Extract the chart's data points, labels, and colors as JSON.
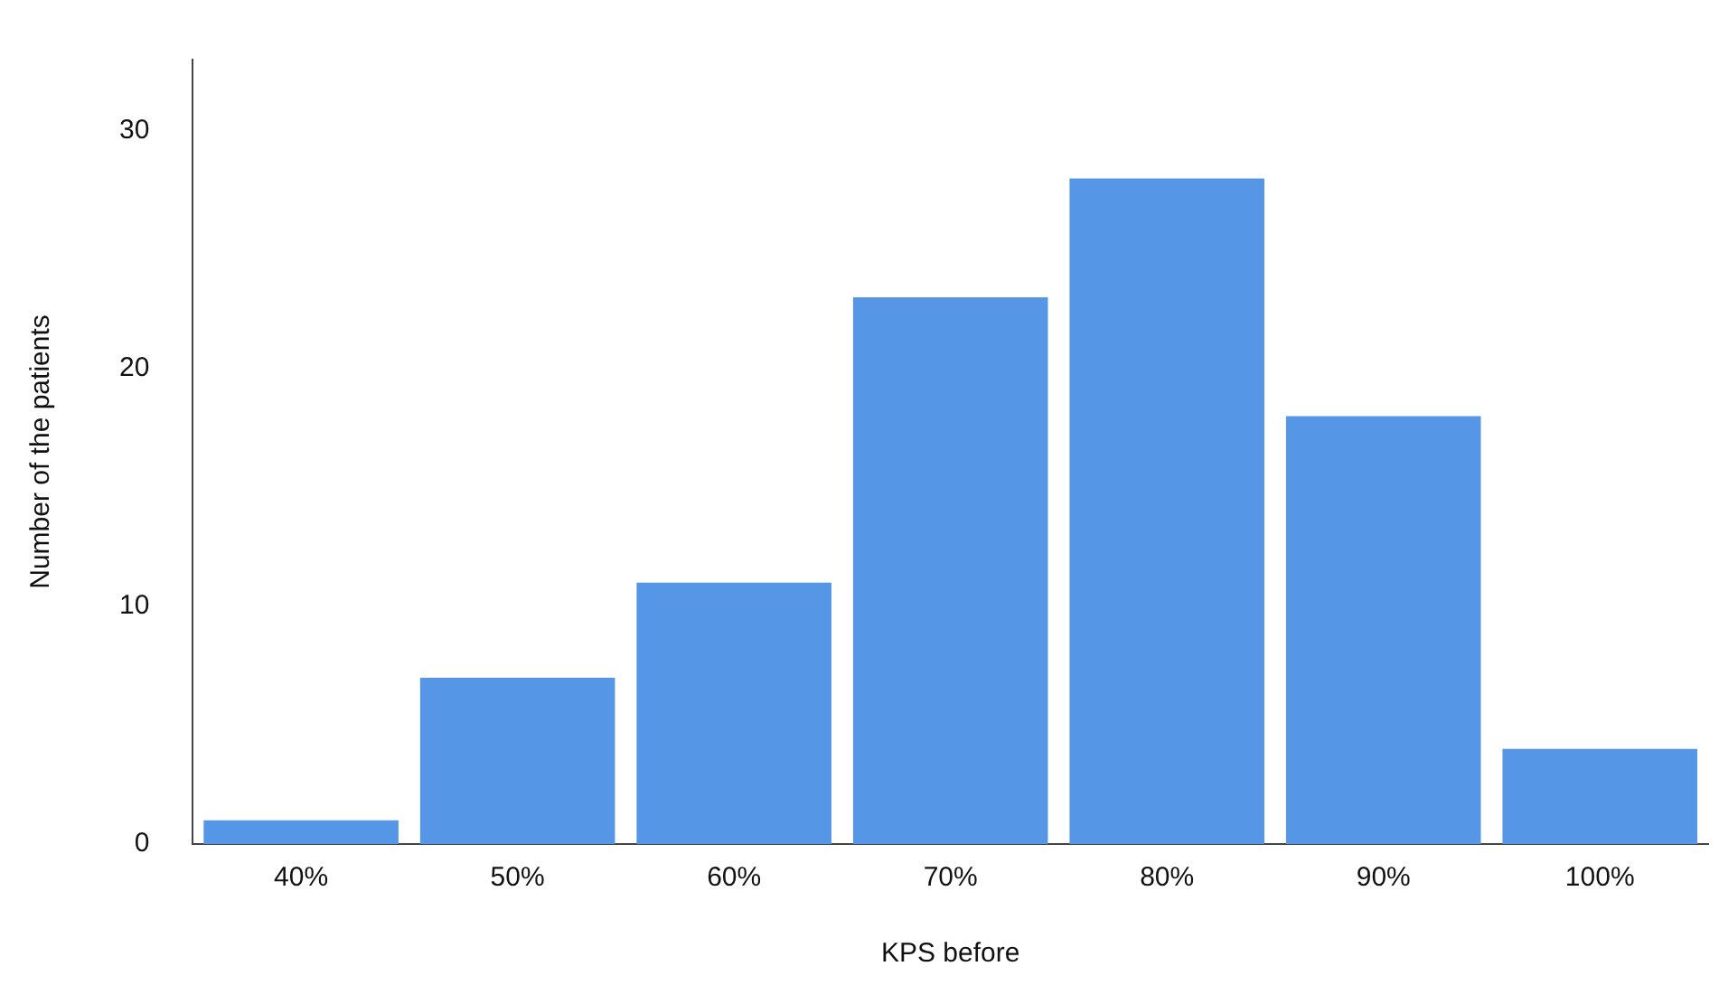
{
  "chart_data": {
    "type": "bar",
    "xlabel": "KPS before",
    "ylabel": "Number of the patients",
    "categories": [
      "40%",
      "50%",
      "60%",
      "70%",
      "80%",
      "90%",
      "100%"
    ],
    "values": [
      1,
      7,
      11,
      23,
      28,
      18,
      4
    ],
    "color": "#5596e6",
    "ylim": [
      0,
      33
    ],
    "yticks": [
      0,
      10,
      20,
      30
    ],
    "grid": false,
    "legend": false
  }
}
